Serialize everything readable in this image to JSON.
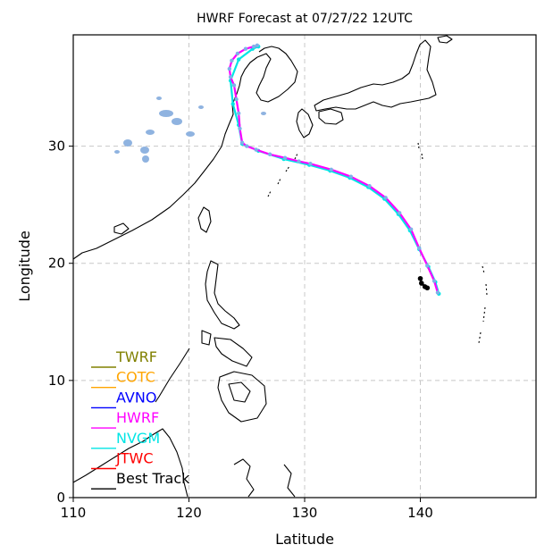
{
  "chart_data": {
    "type": "line",
    "title": "HWRF Forecast at 07/27/22 12UTC",
    "xlabel": "Latitude",
    "ylabel": "Longitude",
    "xlim": [
      110,
      150
    ],
    "ylim": [
      0,
      39.5
    ],
    "xticks": [
      110,
      120,
      130,
      140
    ],
    "yticks": [
      0,
      10,
      20,
      30
    ],
    "grid": true,
    "legend_position": "lower-left",
    "series": [
      {
        "name": "TWRF",
        "color": "#808000",
        "x": [],
        "y": []
      },
      {
        "name": "COTC",
        "color": "#ffa500",
        "x": [],
        "y": []
      },
      {
        "name": "AVNO",
        "color": "#0000ff",
        "x": [],
        "y": []
      },
      {
        "name": "HWRF",
        "color": "#ff00ff",
        "marker_color": "#7fb0e8",
        "x": [
          141.5,
          141.2,
          140.6,
          139.9,
          139.2,
          138.2,
          137.0,
          135.6,
          134.0,
          132.3,
          130.5,
          129.5,
          128.3,
          127.0,
          125.8,
          125.0,
          124.6,
          124.4,
          124.3,
          124.1,
          123.9,
          123.6,
          123.5,
          123.7,
          124.2,
          124.9,
          125.6,
          125.9
        ],
        "y": [
          17.5,
          18.5,
          19.8,
          21.3,
          22.9,
          24.3,
          25.6,
          26.6,
          27.4,
          28.0,
          28.5,
          28.7,
          29.0,
          29.3,
          29.7,
          30.0,
          30.3,
          31.5,
          32.8,
          34.0,
          35.2,
          35.9,
          36.6,
          37.3,
          37.9,
          38.3,
          38.5,
          38.6
        ]
      },
      {
        "name": "NVGM",
        "color": "#00e5e5",
        "x": [
          141.6,
          141.3,
          140.7,
          139.9,
          139.1,
          138.1,
          136.9,
          135.5,
          133.9,
          132.2,
          130.4,
          128.2,
          126.0,
          124.6,
          124.3,
          123.8,
          123.6,
          124.3,
          125.5,
          126.0
        ],
        "y": [
          17.4,
          18.4,
          19.7,
          21.2,
          22.8,
          24.2,
          25.5,
          26.5,
          27.3,
          27.9,
          28.4,
          28.9,
          29.6,
          30.2,
          31.8,
          33.6,
          35.6,
          37.4,
          38.3,
          38.5
        ]
      },
      {
        "name": "JTWC",
        "color": "#ff0000",
        "x": [],
        "y": []
      },
      {
        "name": "Best Track",
        "color": "#000000",
        "x": [
          140.0,
          140.1,
          140.4,
          140.6
        ],
        "y": [
          18.7,
          18.3,
          18.0,
          17.9
        ]
      }
    ]
  }
}
